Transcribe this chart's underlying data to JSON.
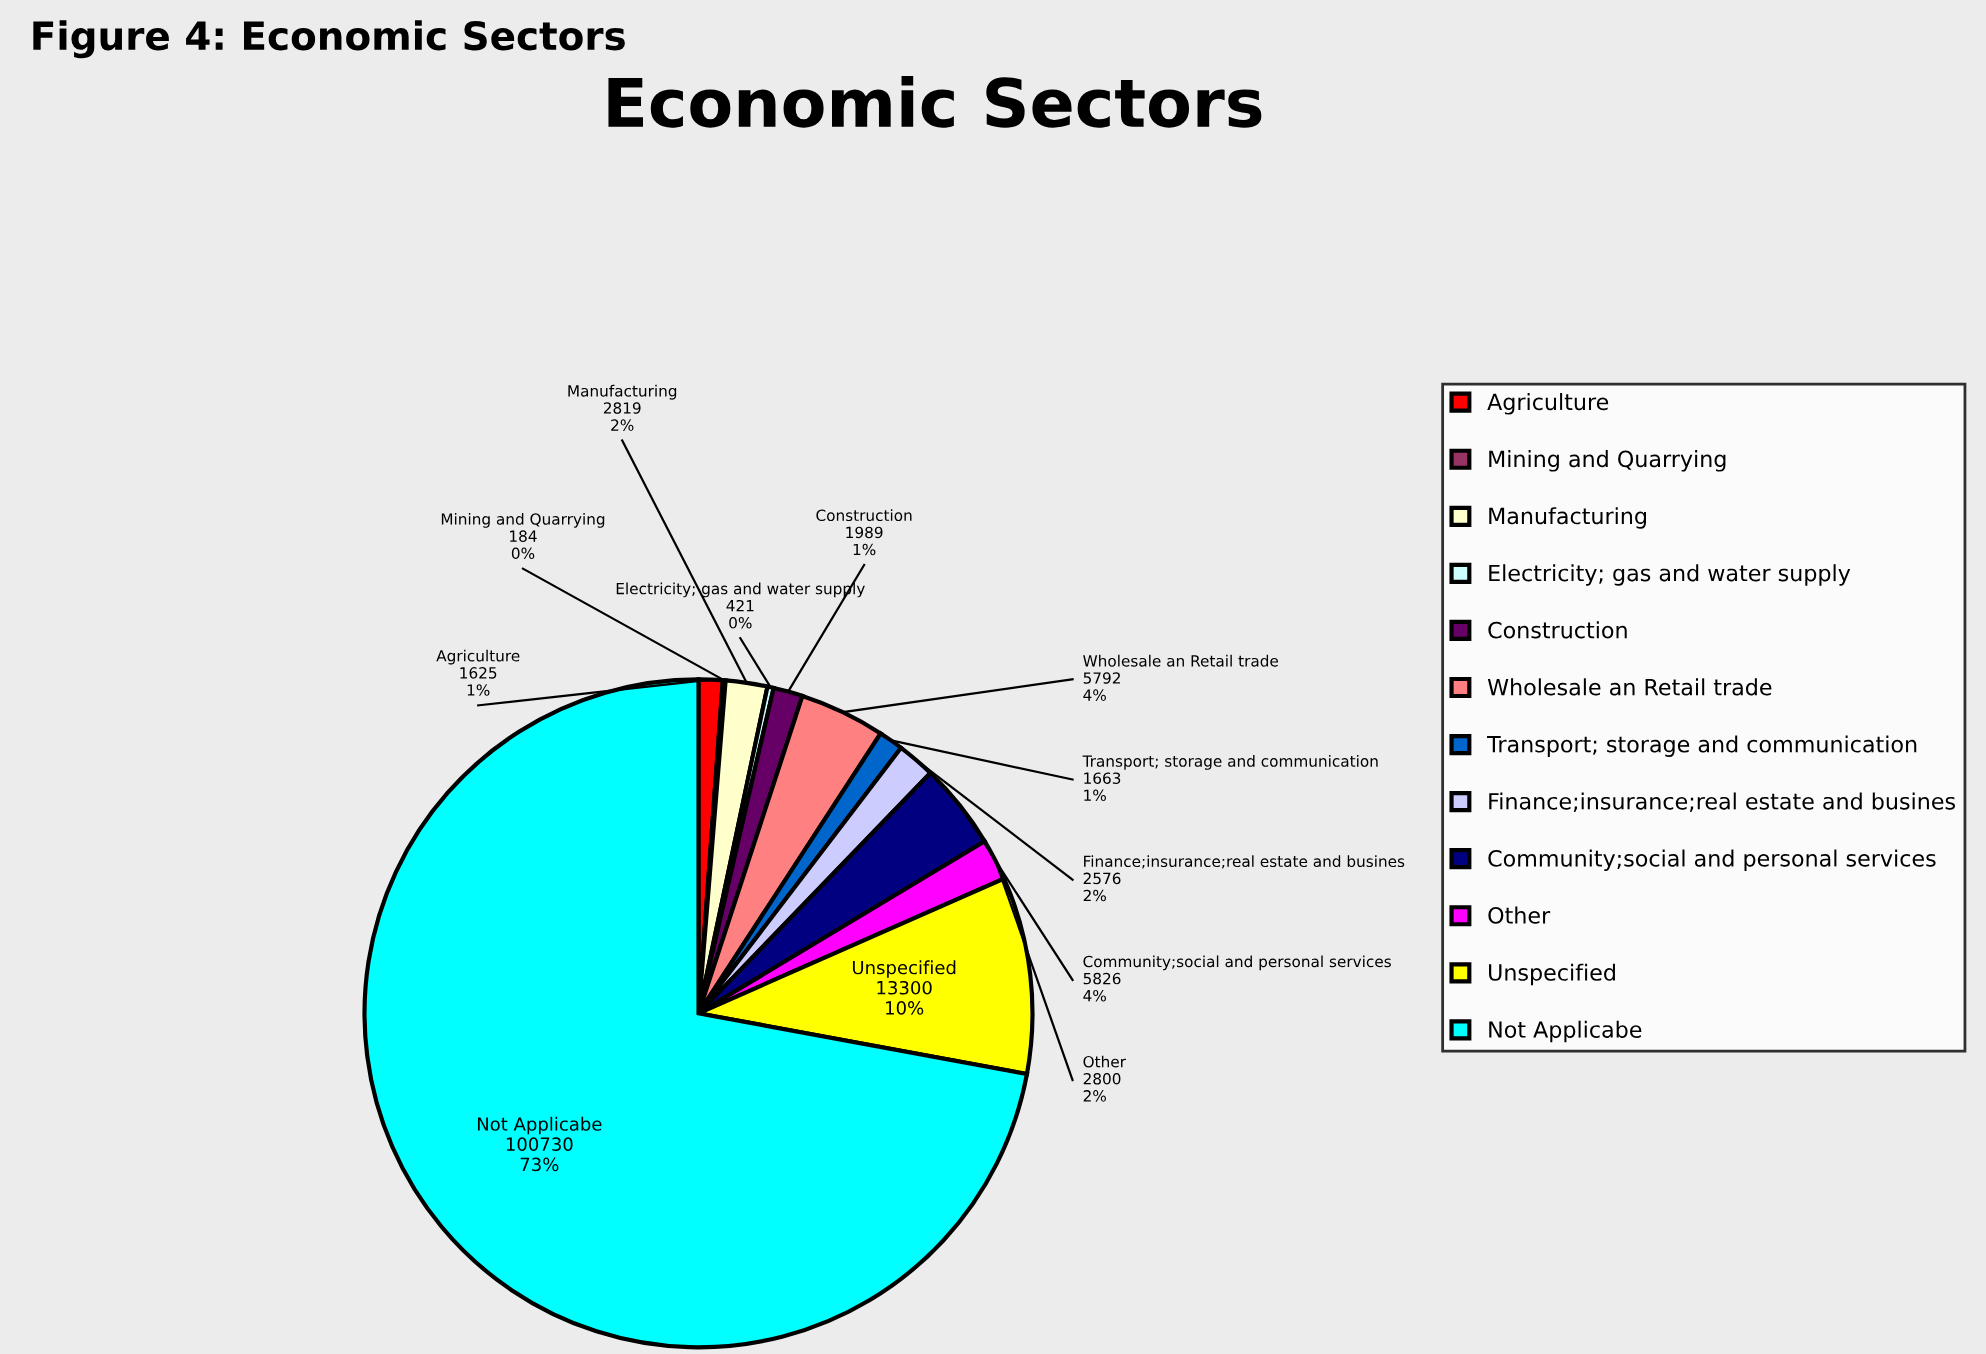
{
  "chart_data": {
    "type": "pie",
    "title": "Economic Sectors",
    "subtitle": "Figure 4: Economic Sectors",
    "categories": [
      "Agriculture",
      "Mining and Quarrying",
      "Manufacturing",
      "Electricity; gas and water supply",
      "Construction",
      "Wholesale an Retail trade",
      "Transport; storage and communication",
      "Finance;insurance;real estate and busines",
      "Community;social and personal services",
      "Other",
      "Unspecified",
      "Not Applicabe"
    ],
    "values": [
      1625,
      184,
      2819,
      421,
      1989,
      5792,
      1663,
      2576,
      5826,
      2800,
      13300,
      100730
    ],
    "value_labels": [
      "1625\n1%",
      "184\n0%",
      "2819\n2%",
      "421\n0%",
      "1989\n1%",
      "5792\n4%",
      "1663\n1%",
      "2576\n2%",
      "5826\n4%",
      "2800\n2%",
      "13300\n10%",
      "100730\n73%"
    ],
    "colors": [
      "#ff0000",
      "#993366",
      "#ffffcc",
      "#ccffff",
      "#660066",
      "#ff8080",
      "#0066cc",
      "#ccccff",
      "#000080",
      "#ff00ff",
      "#ffff00",
      "#00ffff"
    ],
    "legend": "right"
  }
}
